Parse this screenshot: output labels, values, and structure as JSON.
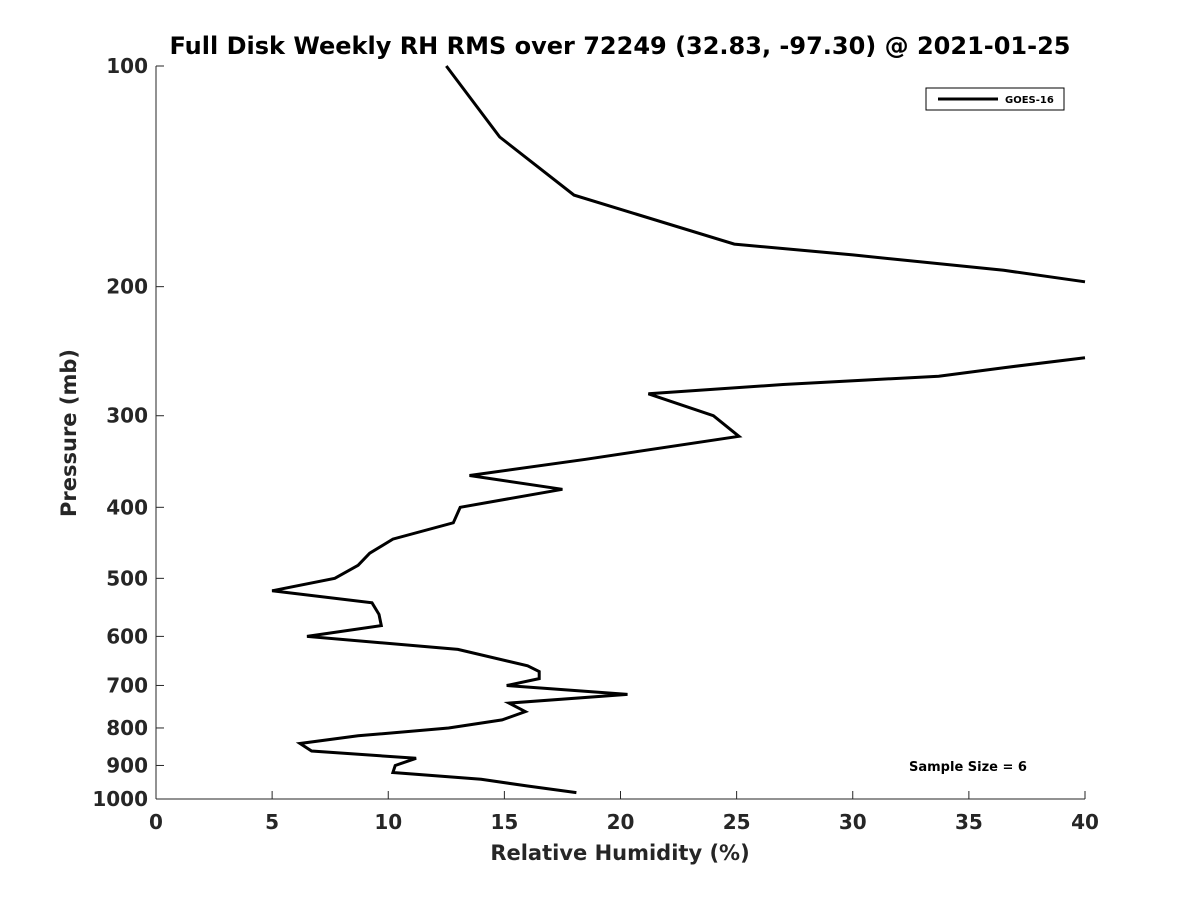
{
  "chart_data": {
    "type": "line",
    "title": "Full Disk Weekly RH RMS over 72249 (32.83, -97.30) @ 2021-01-25",
    "xlabel": "Relative Humidity (%)",
    "ylabel": "Pressure (mb)",
    "xlim": [
      0,
      40
    ],
    "ylim": [
      1000,
      100
    ],
    "yscale": "log",
    "y_inverted": true,
    "grid": false,
    "legend_position": "top-right",
    "x_ticks": [
      0,
      5,
      10,
      15,
      20,
      25,
      30,
      35,
      40
    ],
    "y_ticks": [
      100,
      200,
      300,
      400,
      500,
      600,
      700,
      800,
      900,
      1000
    ],
    "annotation": "Sample Size = 6",
    "series": [
      {
        "name": "GOES-16",
        "color": "#000000",
        "segments": [
          [
            {
              "x": 12.5,
              "y": 100
            },
            {
              "x": 14.8,
              "y": 125
            },
            {
              "x": 18.0,
              "y": 150
            },
            {
              "x": 24.9,
              "y": 175
            },
            {
              "x": 30.0,
              "y": 181
            },
            {
              "x": 36.5,
              "y": 190
            },
            {
              "x": 40.0,
              "y": 197
            }
          ],
          [
            {
              "x": 40.0,
              "y": 250
            },
            {
              "x": 36.5,
              "y": 258
            },
            {
              "x": 33.7,
              "y": 265
            },
            {
              "x": 27.0,
              "y": 272
            },
            {
              "x": 21.2,
              "y": 280
            },
            {
              "x": 24.0,
              "y": 300
            },
            {
              "x": 25.1,
              "y": 320
            },
            {
              "x": 18.5,
              "y": 344
            },
            {
              "x": 13.5,
              "y": 362
            },
            {
              "x": 17.5,
              "y": 378
            },
            {
              "x": 13.1,
              "y": 400
            },
            {
              "x": 12.8,
              "y": 420
            },
            {
              "x": 10.2,
              "y": 442
            },
            {
              "x": 9.2,
              "y": 462
            },
            {
              "x": 8.7,
              "y": 480
            },
            {
              "x": 7.7,
              "y": 500
            },
            {
              "x": 5.0,
              "y": 520
            },
            {
              "x": 9.3,
              "y": 540
            },
            {
              "x": 9.6,
              "y": 560
            },
            {
              "x": 9.7,
              "y": 580
            },
            {
              "x": 6.5,
              "y": 600
            },
            {
              "x": 13.0,
              "y": 625
            },
            {
              "x": 16.0,
              "y": 658
            },
            {
              "x": 16.5,
              "y": 670
            },
            {
              "x": 16.5,
              "y": 685
            },
            {
              "x": 15.1,
              "y": 700
            },
            {
              "x": 20.3,
              "y": 720
            },
            {
              "x": 15.2,
              "y": 740
            },
            {
              "x": 15.9,
              "y": 760
            },
            {
              "x": 14.9,
              "y": 780
            },
            {
              "x": 12.6,
              "y": 800
            },
            {
              "x": 8.7,
              "y": 820
            },
            {
              "x": 6.2,
              "y": 840
            },
            {
              "x": 6.7,
              "y": 860
            },
            {
              "x": 11.2,
              "y": 880
            },
            {
              "x": 10.3,
              "y": 900
            },
            {
              "x": 10.2,
              "y": 920
            },
            {
              "x": 14.0,
              "y": 940
            },
            {
              "x": 16.0,
              "y": 960
            },
            {
              "x": 18.1,
              "y": 980
            }
          ]
        ]
      }
    ]
  }
}
